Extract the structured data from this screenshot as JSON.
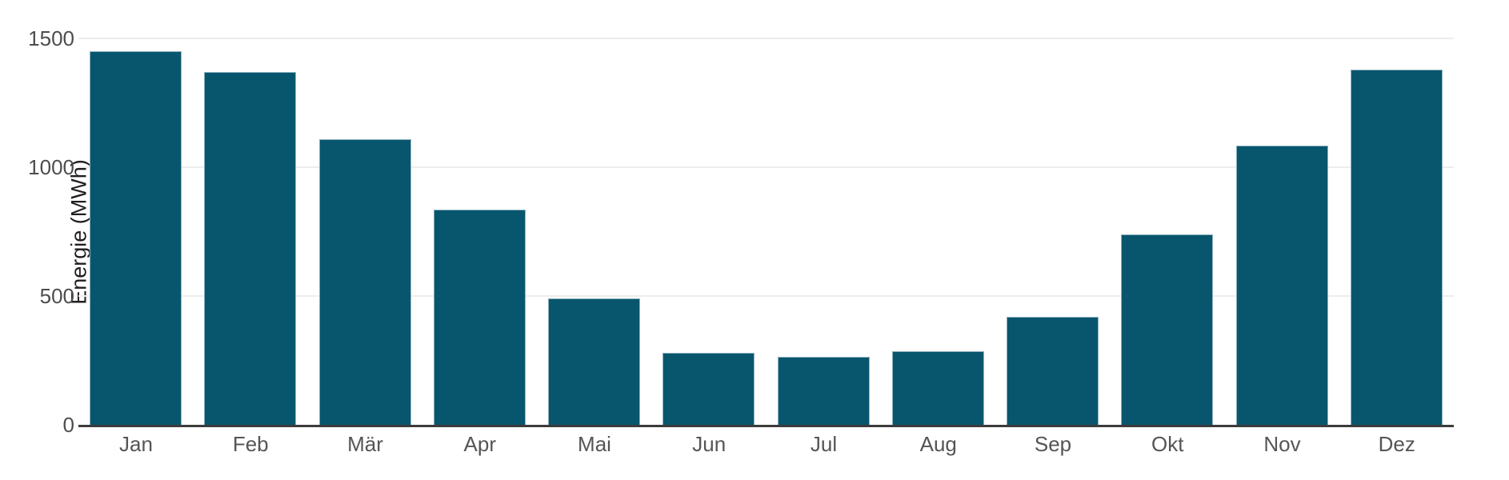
{
  "chart_data": {
    "type": "bar",
    "title": "",
    "ylabel": "Energie (MWh)",
    "xlabel": "",
    "categories": [
      "Jan",
      "Feb",
      "Mär",
      "Apr",
      "Mai",
      "Jun",
      "Jul",
      "Aug",
      "Sep",
      "Okt",
      "Nov",
      "Dez"
    ],
    "values": [
      1450,
      1370,
      1110,
      835,
      490,
      280,
      265,
      285,
      420,
      740,
      1085,
      1380
    ],
    "ylim": [
      0,
      1500
    ],
    "yticks": [
      0,
      500,
      1000,
      1500
    ],
    "grid": true,
    "legend": false,
    "colors": {
      "bar_fill": "#08566e",
      "bar_edge": "#8fb3c0",
      "gridline": "#ededed",
      "axis_line": "#3c3c3c",
      "tick_label": "#4d4d4d",
      "axis_title": "#1f1f1f",
      "background": "#ffffff"
    }
  }
}
